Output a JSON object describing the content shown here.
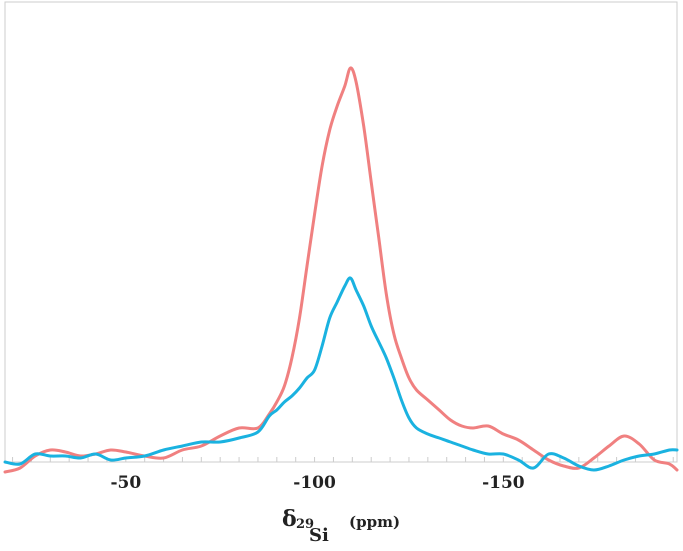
{
  "chart_data": {
    "type": "line",
    "title": "",
    "xlabel": {
      "symbol": "δ",
      "subscript_number": "29",
      "subscript_element": "Si",
      "unit": "(ppm)"
    },
    "ylabel": "",
    "x_reversed": true,
    "xlim": [
      -18,
      -196
    ],
    "ylim": [
      0,
      100
    ],
    "x_ticks": [
      -50,
      -100,
      -150
    ],
    "x_tick_labels": [
      "-50",
      "-100",
      "-150"
    ],
    "minor_tick_step": 5,
    "grid": false,
    "colors": {
      "red": "#f08080",
      "blue": "#1ab2e0",
      "frame": "#cccccc"
    },
    "series": [
      {
        "color": "#f08080",
        "x": [
          -18,
          -22,
          -26,
          -30,
          -34,
          -38,
          -42,
          -46,
          -50,
          -55,
          -60,
          -65,
          -70,
          -75,
          -80,
          -85,
          -88,
          -90,
          -92,
          -94,
          -96,
          -98,
          -100,
          -102,
          -104,
          -106,
          -108,
          -109.5,
          -111,
          -113,
          -115,
          -117,
          -119,
          -121,
          -123,
          -125,
          -127,
          -130,
          -133,
          -136,
          -139,
          -142,
          -146,
          -150,
          -154,
          -158,
          -162,
          -166,
          -170,
          -174,
          -178,
          -182,
          -186,
          -190,
          -194,
          -196
        ],
        "y": [
          -1.5,
          -0.5,
          2.5,
          4,
          3.5,
          2.5,
          3,
          4,
          3.5,
          2.5,
          2,
          4,
          5,
          7.5,
          9.5,
          9.5,
          13,
          16,
          20,
          27,
          37,
          50,
          63,
          75,
          84,
          90,
          95,
          99.5,
          96,
          85,
          71,
          57,
          43,
          33,
          27,
          22,
          19,
          16.5,
          14,
          11.5,
          10,
          9.5,
          10,
          8,
          6.5,
          4,
          1.5,
          0,
          -0.5,
          2,
          5,
          7.5,
          5.5,
          1.5,
          0.5,
          -1
        ]
      },
      {
        "color": "#1ab2e0",
        "x": [
          -18,
          -22,
          -26,
          -30,
          -34,
          -38,
          -42,
          -46,
          -50,
          -55,
          -60,
          -65,
          -70,
          -75,
          -80,
          -85,
          -88,
          -90,
          -92,
          -94,
          -96,
          -98,
          -100,
          -102,
          -104,
          -106,
          -108,
          -109.5,
          -111,
          -113,
          -115,
          -117,
          -119,
          -121,
          -123,
          -125,
          -127,
          -130,
          -133,
          -136,
          -139,
          -142,
          -146,
          -150,
          -154,
          -158,
          -162,
          -166,
          -170,
          -174,
          -178,
          -182,
          -186,
          -190,
          -194,
          -196
        ],
        "y": [
          1,
          0.5,
          3,
          2.5,
          2.5,
          2,
          3,
          1.5,
          2,
          2.5,
          4,
          5,
          6,
          6,
          7,
          8.5,
          12.5,
          14,
          16,
          17.5,
          19.5,
          22,
          24,
          30,
          37,
          41,
          45,
          47,
          44,
          40,
          35,
          31,
          27,
          22,
          16.5,
          12,
          9.5,
          8,
          7,
          6,
          5,
          4,
          3,
          3,
          1.5,
          -0.5,
          3,
          2,
          0,
          -1,
          0,
          1.5,
          2.5,
          3,
          4,
          4
        ]
      }
    ]
  }
}
